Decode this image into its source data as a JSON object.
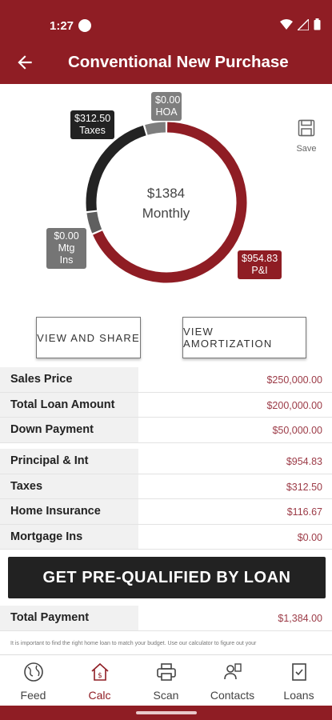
{
  "status": {
    "time": "1:27"
  },
  "header": {
    "title": "Conventional New Purchase"
  },
  "chart_data": {
    "type": "pie",
    "total_label": "$1384",
    "center_label": "Monthly",
    "slices": [
      {
        "name": "P&I",
        "value": 954.83,
        "label": "$954.83",
        "color": "#8f1d24"
      },
      {
        "name": "Mtg Ins",
        "value": 0.0,
        "label": "$0.00",
        "color": "#5f5f5f"
      },
      {
        "name": "Taxes",
        "value": 312.5,
        "label": "$312.50",
        "color": "#232323"
      },
      {
        "name": "HOA",
        "value": 0.0,
        "label": "$0.00",
        "color": "#7e7e7e"
      }
    ]
  },
  "callouts": {
    "hoa": {
      "amount": "$0.00",
      "name": "HOA"
    },
    "taxes": {
      "amount": "$312.50",
      "name": "Taxes"
    },
    "mtg": {
      "amount": "$0.00",
      "name": "Mtg Ins"
    },
    "pi": {
      "amount": "$954.83",
      "name": "P&I"
    }
  },
  "save": {
    "label": "Save",
    "icon": "save-icon"
  },
  "buttons": {
    "share": "VIEW AND SHARE",
    "amortization": "VIEW AMORTIZATION",
    "cta": "GET PRE-QUALIFIED BY LOAN"
  },
  "loan_table": [
    {
      "label": "Sales Price",
      "value": "$250,000.00"
    },
    {
      "label": "Total Loan Amount",
      "value": "$200,000.00"
    },
    {
      "label": "Down Payment",
      "value": "$50,000.00"
    }
  ],
  "payment_table": [
    {
      "label": "Principal & Int",
      "value": "$954.83"
    },
    {
      "label": "Taxes",
      "value": "$312.50"
    },
    {
      "label": "Home Insurance",
      "value": "$116.67"
    },
    {
      "label": "Mortgage Ins",
      "value": "$0.00"
    }
  ],
  "total": {
    "label": "Total Payment",
    "value": "$1,384.00"
  },
  "disclaimer": "It is important to find the right home loan to match your budget. Use our calculator to figure out your",
  "nav": [
    {
      "label": "Feed",
      "icon": "globe-icon"
    },
    {
      "label": "Calc",
      "icon": "calculator-house-icon"
    },
    {
      "label": "Scan",
      "icon": "printer-icon"
    },
    {
      "label": "Contacts",
      "icon": "contacts-icon"
    },
    {
      "label": "Loans",
      "icon": "document-check-icon"
    }
  ],
  "colors": {
    "brand": "#8f1d24",
    "dark": "#222222",
    "value_text": "#9c3b47"
  }
}
